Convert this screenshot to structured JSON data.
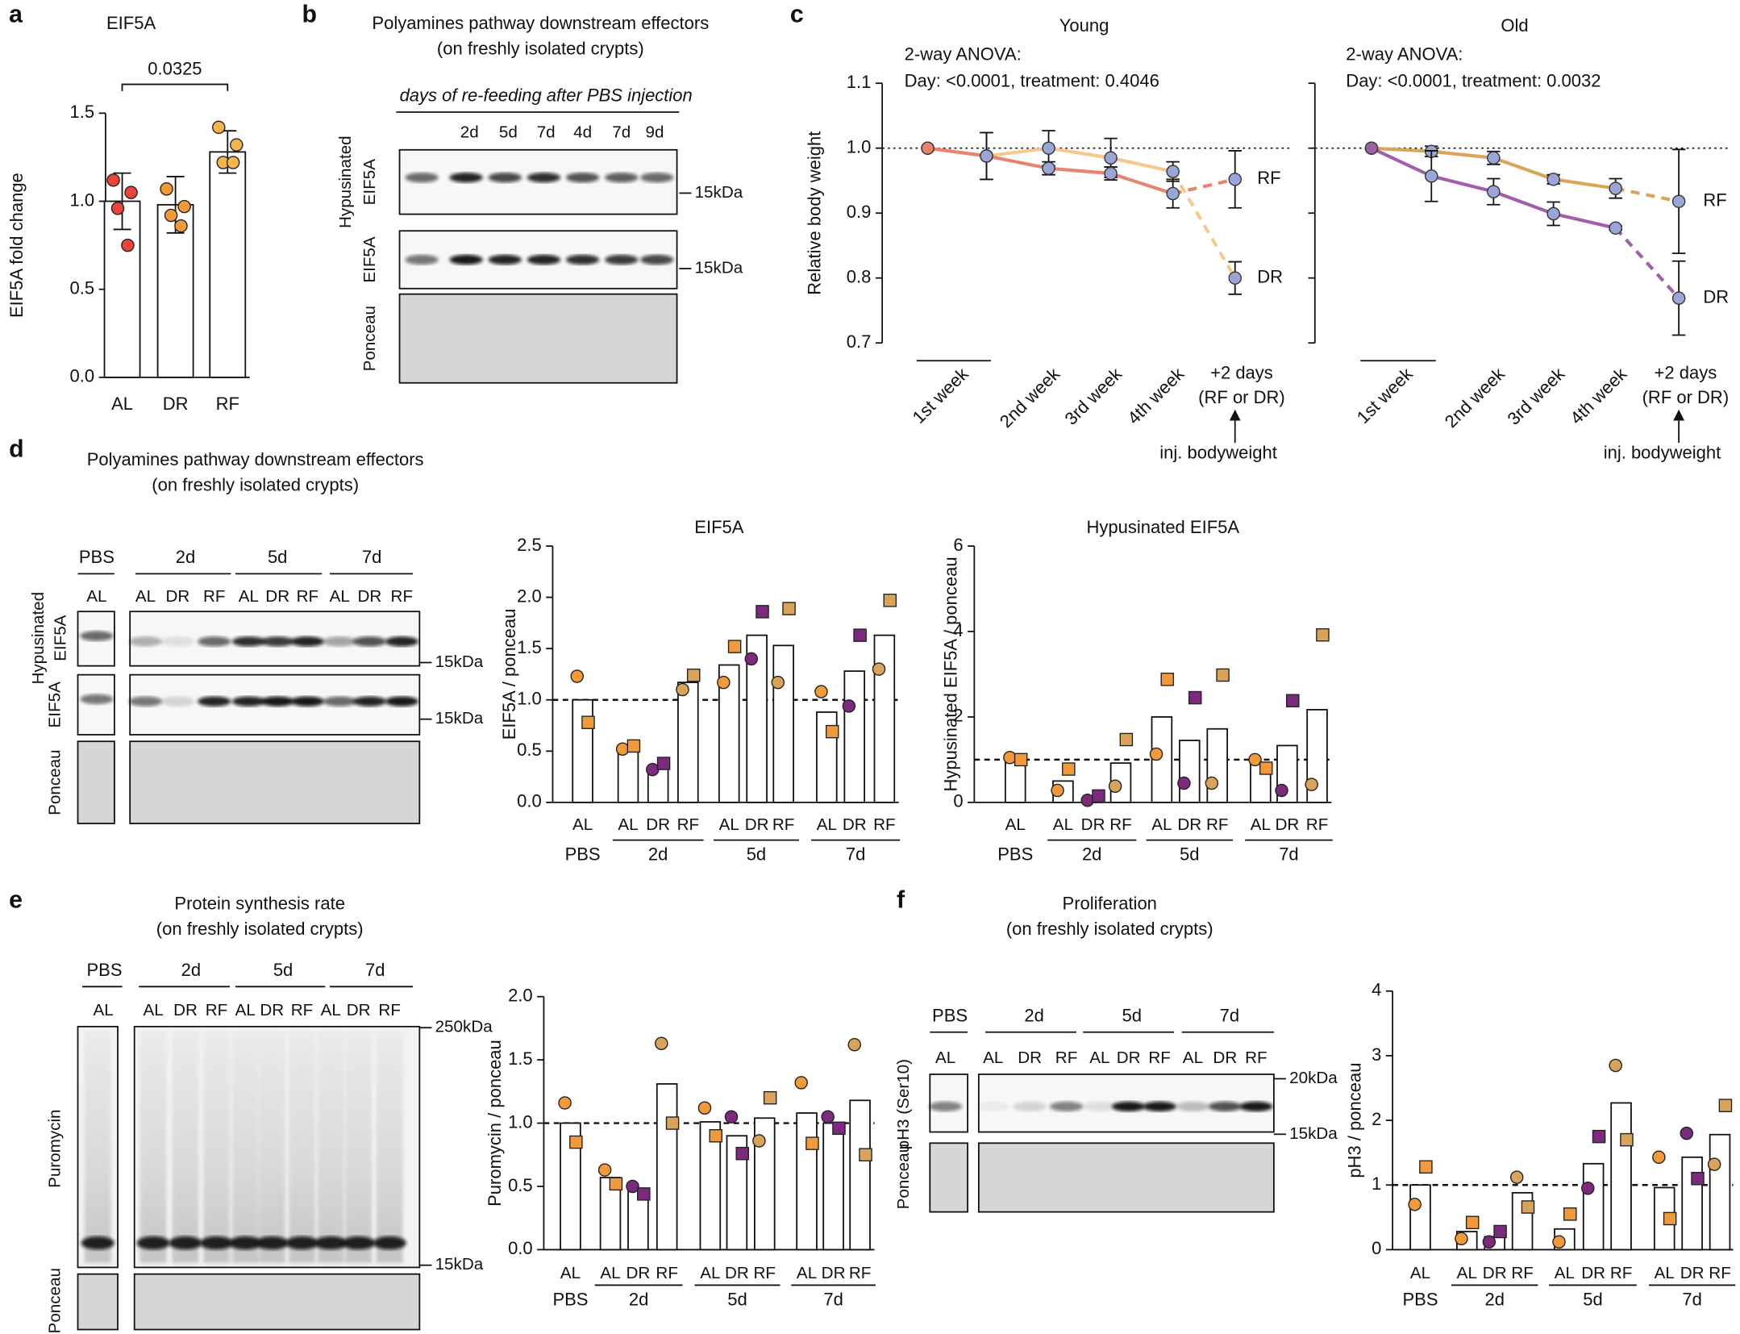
{
  "panel_labels": [
    "a",
    "b",
    "c",
    "d",
    "e",
    "f"
  ],
  "headings": [
    {
      "lines": [
        "Polyamines pathway downstream effectors",
        "(on freshly isolated crypts)"
      ]
    },
    {
      "lines": [
        "Polyamines pathway downstream effectors",
        "(on freshly isolated crypts)"
      ]
    },
    {
      "lines": [
        "Protein synthesis rate",
        "(on freshly isolated crypts)"
      ]
    },
    {
      "lines": [
        "Proliferation",
        "(on freshly isolated crypts)"
      ]
    }
  ],
  "blots": [
    {
      "caption": "days of re-feeding after PBS injection",
      "lanes": [
        "2d",
        "5d",
        "7d",
        "4d",
        "7d",
        "9d"
      ],
      "rows": [
        [
          "Hypusinated",
          "EIF5A"
        ],
        [
          "EIF5A"
        ],
        [
          "Ponceau"
        ]
      ],
      "markers": [
        "15kDa",
        "15kDa"
      ]
    },
    {
      "groups": [
        "PBS",
        "2d",
        "5d",
        "7d"
      ],
      "lanes": [
        "AL",
        "AL",
        "DR",
        "RF",
        "AL",
        "DR",
        "RF",
        "AL",
        "DR",
        "RF"
      ],
      "rows": [
        [
          "Hypusinated",
          "EIF5A"
        ],
        [
          "EIF5A"
        ],
        [
          "Ponceau"
        ]
      ],
      "markers": [
        "15kDa",
        "15kDa"
      ]
    },
    {
      "groups": [
        "PBS",
        "2d",
        "5d",
        "7d"
      ],
      "lanes": [
        "AL",
        "AL",
        "DR",
        "RF",
        "AL",
        "DR",
        "RF",
        "AL",
        "DR",
        "RF"
      ],
      "rows": [
        [
          "Puromycin"
        ],
        [
          "Ponceau"
        ]
      ],
      "markers": [
        "250kDa",
        "15kDa"
      ]
    },
    {
      "groups": [
        "PBS",
        "2d",
        "5d",
        "7d"
      ],
      "lanes": [
        "AL",
        "AL",
        "DR",
        "RF",
        "AL",
        "DR",
        "RF",
        "AL",
        "DR",
        "RF"
      ],
      "rows": [
        [
          "pH3 (Ser10)"
        ],
        [
          "Ponceau"
        ]
      ],
      "markers": [
        "20kDa",
        "15kDa"
      ]
    }
  ],
  "chart_data": [
    {
      "type": "bar",
      "title": "EIF5A",
      "ylabel": "EIF5A fold change",
      "categories": [
        "AL",
        "DR",
        "RF"
      ],
      "values": [
        1.0,
        0.98,
        1.28
      ],
      "errors": [
        0.16,
        0.16,
        0.12
      ],
      "points": [
        [
          1.12,
          1.05,
          0.96,
          0.75
        ],
        [
          1.07,
          0.97,
          0.92,
          0.86
        ],
        [
          1.42,
          1.32,
          1.22,
          1.22
        ]
      ],
      "colors": [
        "#e8453c",
        "#f29a3a",
        "#f5b54a"
      ],
      "annotation": "0.0325",
      "ylim": [
        0,
        1.5
      ],
      "yticks": [
        {
          "value": 0,
          "label": "0.0"
        },
        0.5,
        {
          "value": 1,
          "label": "1.0"
        },
        1.5
      ]
    },
    {
      "type": "line",
      "title": "Young",
      "annotations": [
        "2-way ANOVA:",
        "Day: <0.0001, treatment: 0.4046"
      ],
      "ylabel": "Relative body weight",
      "categories": [
        "1st week",
        null,
        "2nd week",
        "3rd week",
        "4th week",
        "+2 days"
      ],
      "x_note": "(RF or DR)",
      "arrow_label": "inj. bodyweight",
      "series": [
        {
          "name": "DR",
          "color": "#f5c98e",
          "values": [
            1.0,
            0.988,
            1.0,
            0.985,
            0.964,
            0.8
          ],
          "errors": [
            null,
            0.036,
            0.027,
            0.03,
            0.015,
            0.025
          ]
        },
        {
          "name": "RF",
          "color": "#e8836e",
          "values": [
            1.0,
            0.988,
            0.969,
            0.961,
            0.93,
            0.952
          ],
          "errors": [
            null,
            0.036,
            0.01,
            0.01,
            0.022,
            0.044
          ]
        }
      ],
      "marker_color": "#9aa5d8",
      "dashed_last": true,
      "ref_line": 1,
      "ylim": [
        0.7,
        1.1
      ],
      "yticks": [
        0.7,
        0.8,
        0.9,
        {
          "value": 1,
          "label": "1.0"
        },
        1.1
      ]
    },
    {
      "type": "line",
      "title": "Old",
      "annotations": [
        "2-way ANOVA:",
        "Day: <0.0001, treatment: 0.0032"
      ],
      "categories": [
        "1st week",
        null,
        "2nd week",
        "3rd week",
        "4th week",
        "+2 days"
      ],
      "x_note": "(RF or DR)",
      "arrow_label": "inj. bodyweight",
      "series": [
        {
          "name": "RF",
          "color": "#d9a55a",
          "values": [
            1.0,
            0.995,
            0.985,
            0.952,
            0.938,
            0.918
          ],
          "errors": [
            null,
            0.008,
            0.01,
            0.007,
            0.015,
            0.08
          ]
        },
        {
          "name": "DR",
          "color": "#a05fa8",
          "values": [
            1.0,
            0.957,
            0.933,
            0.899,
            0.877,
            0.769
          ],
          "errors": [
            null,
            0.039,
            0.02,
            0.018,
            0.003,
            0.057
          ]
        }
      ],
      "marker_color": "#9aa5d8",
      "dashed_last": true,
      "ref_line": 1,
      "ylim": [
        0.7,
        1.1
      ],
      "yticks": [
        0.7,
        0.8,
        0.9,
        {
          "value": 1,
          "label": "1.0"
        },
        1.1
      ],
      "ytick_labels": false
    },
    {
      "type": "grouped_bar",
      "title": "EIF5A",
      "ylabel": "EIF5A / ponceau",
      "markers": [
        "circle",
        "square"
      ],
      "colors": {
        "AL": "#f29a3a",
        "DR": "#7b2a7d",
        "RF": "#d9a45a"
      },
      "ref_line": 1,
      "groups": [
        {
          "label": "PBS",
          "categories": [
            "AL"
          ],
          "values": [
            1.0
          ],
          "points": [
            [
              1.23,
              0.78
            ]
          ]
        },
        {
          "label": "2d",
          "categories": [
            "AL",
            "DR",
            "RF"
          ],
          "values": [
            0.52,
            0.35,
            1.17
          ],
          "points": [
            [
              0.52,
              0.55
            ],
            [
              0.32,
              0.38
            ],
            [
              1.1,
              1.24
            ]
          ]
        },
        {
          "label": "5d",
          "categories": [
            "AL",
            "DR",
            "RF"
          ],
          "values": [
            1.34,
            1.63,
            1.53
          ],
          "points": [
            [
              1.17,
              1.52
            ],
            [
              1.4,
              1.86
            ],
            [
              1.17,
              1.89
            ]
          ]
        },
        {
          "label": "7d",
          "categories": [
            "AL",
            "DR",
            "RF"
          ],
          "values": [
            0.88,
            1.28,
            1.63
          ],
          "points": [
            [
              1.08,
              0.69
            ],
            [
              0.94,
              1.63
            ],
            [
              1.3,
              1.97
            ]
          ]
        }
      ],
      "ylim": [
        0,
        2.5
      ],
      "yticks": [
        {
          "value": 0,
          "label": "0.0"
        },
        0.5,
        {
          "value": 1,
          "label": "1.0"
        },
        1.5,
        {
          "value": 2,
          "label": "2.0"
        },
        2.5
      ]
    },
    {
      "type": "grouped_bar",
      "title": "Hypusinated EIF5A",
      "ylabel": "Hypusinated EIF5A / ponceau",
      "markers": [
        "circle",
        "square"
      ],
      "colors": {
        "AL": "#f29a3a",
        "DR": "#7b2a7d",
        "RF": "#d9a45a"
      },
      "ref_line": 1,
      "groups": [
        {
          "label": "PBS",
          "categories": [
            "AL"
          ],
          "values": [
            1.0
          ],
          "points": [
            [
              1.05,
              1.0
            ]
          ]
        },
        {
          "label": "2d",
          "categories": [
            "AL",
            "DR",
            "RF"
          ],
          "values": [
            0.5,
            0.1,
            0.92
          ],
          "points": [
            [
              0.28,
              0.78
            ],
            [
              0.05,
              0.15
            ],
            [
              0.38,
              1.47
            ]
          ]
        },
        {
          "label": "5d",
          "categories": [
            "AL",
            "DR",
            "RF"
          ],
          "values": [
            2.0,
            1.45,
            1.72
          ],
          "points": [
            [
              1.13,
              2.88
            ],
            [
              0.45,
              2.45
            ],
            [
              0.45,
              2.98
            ]
          ]
        },
        {
          "label": "7d",
          "categories": [
            "AL",
            "DR",
            "RF"
          ],
          "values": [
            0.9,
            1.33,
            2.17
          ],
          "points": [
            [
              1.0,
              0.8
            ],
            [
              0.28,
              2.38
            ],
            [
              0.42,
              3.92
            ]
          ]
        }
      ],
      "ylim": [
        0,
        6
      ],
      "yticks": [
        0,
        2,
        4,
        6
      ]
    },
    {
      "type": "grouped_bar",
      "ylabel": "Puromycin / ponceau",
      "markers": [
        "circle",
        "square"
      ],
      "colors": {
        "AL": "#f29a3a",
        "DR": "#7b2a7d",
        "RF": "#d9a45a"
      },
      "ref_line": 1,
      "groups": [
        {
          "label": "PBS",
          "categories": [
            "AL"
          ],
          "values": [
            1.0
          ],
          "points": [
            [
              1.16,
              0.85
            ]
          ]
        },
        {
          "label": "2d",
          "categories": [
            "AL",
            "DR",
            "RF"
          ],
          "values": [
            0.57,
            0.47,
            1.31
          ],
          "points": [
            [
              0.63,
              0.52
            ],
            [
              0.5,
              0.44
            ],
            [
              1.63,
              1.0
            ]
          ]
        },
        {
          "label": "5d",
          "categories": [
            "AL",
            "DR",
            "RF"
          ],
          "values": [
            1.01,
            0.9,
            1.04
          ],
          "points": [
            [
              1.12,
              0.9
            ],
            [
              1.05,
              0.76
            ],
            [
              0.86,
              1.2
            ]
          ]
        },
        {
          "label": "7d",
          "categories": [
            "AL",
            "DR",
            "RF"
          ],
          "values": [
            1.08,
            1.0,
            1.18
          ],
          "points": [
            [
              1.32,
              0.84
            ],
            [
              1.05,
              0.96
            ],
            [
              1.62,
              0.75
            ]
          ]
        }
      ],
      "ylim": [
        0,
        2
      ],
      "yticks": [
        {
          "value": 0,
          "label": "0.0"
        },
        0.5,
        {
          "value": 1,
          "label": "1.0"
        },
        1.5,
        {
          "value": 2,
          "label": "2.0"
        }
      ]
    },
    {
      "type": "grouped_bar",
      "ylabel": "pH3 / ponceau",
      "markers": [
        "circle",
        "square"
      ],
      "colors": {
        "AL": "#f29a3a",
        "DR": "#7b2a7d",
        "RF": "#d9a45a"
      },
      "ref_line": 1,
      "groups": [
        {
          "label": "PBS",
          "categories": [
            "AL"
          ],
          "values": [
            1.0
          ],
          "points": [
            [
              0.7,
              1.28
            ]
          ]
        },
        {
          "label": "2d",
          "categories": [
            "AL",
            "DR",
            "RF"
          ],
          "values": [
            0.28,
            0.2,
            0.88
          ],
          "points": [
            [
              0.17,
              0.42
            ],
            [
              0.12,
              0.28
            ],
            [
              1.12,
              0.66
            ]
          ]
        },
        {
          "label": "5d",
          "categories": [
            "AL",
            "DR",
            "RF"
          ],
          "values": [
            0.32,
            1.33,
            2.27
          ],
          "points": [
            [
              0.12,
              0.55
            ],
            [
              0.95,
              1.75
            ],
            [
              2.85,
              1.7
            ]
          ]
        },
        {
          "label": "7d",
          "categories": [
            "AL",
            "DR",
            "RF"
          ],
          "values": [
            0.96,
            1.43,
            1.78
          ],
          "points": [
            [
              1.43,
              0.48
            ],
            [
              1.8,
              1.1
            ],
            [
              1.32,
              2.23
            ]
          ]
        }
      ],
      "ylim": [
        0,
        4
      ],
      "yticks": [
        0,
        1,
        2,
        3,
        4
      ]
    }
  ]
}
